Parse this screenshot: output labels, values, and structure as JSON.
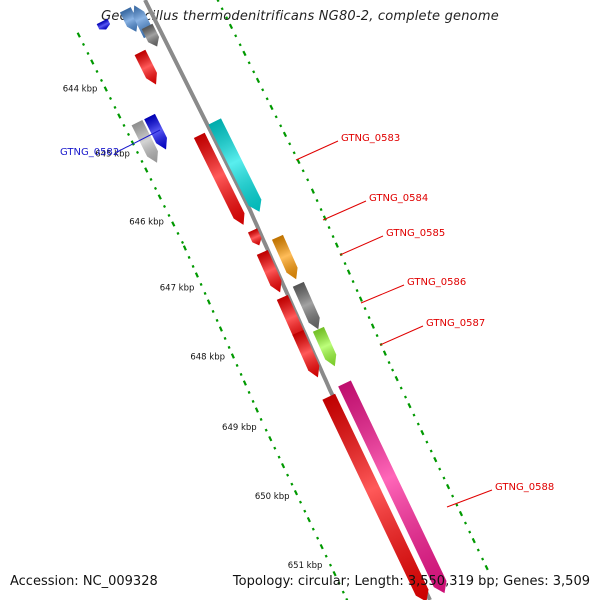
{
  "title": "Geobacillus thermodenitrificans NG80-2, complete genome",
  "footer": {
    "accession_text": "Accession: NC_009328",
    "summary_text": "Topology: circular; Length: 3,550,319 bp; Genes: 3,509"
  },
  "scale_labels": [
    "644 kbp",
    "645 kbp",
    "646 kbp",
    "647 kbp",
    "648 kbp",
    "649 kbp",
    "650 kbp",
    "651 kbp"
  ],
  "gene_labels": [
    {
      "id": "g0582",
      "text": "GTNG_0582",
      "color": "#1a1acc"
    },
    {
      "id": "g0583",
      "text": "GTNG_0583",
      "color": "#e00000"
    },
    {
      "id": "g0584",
      "text": "GTNG_0584",
      "color": "#e00000"
    },
    {
      "id": "g0585",
      "text": "GTNG_0585",
      "color": "#e00000"
    },
    {
      "id": "g0586",
      "text": "GTNG_0586",
      "color": "#e00000"
    },
    {
      "id": "g0587",
      "text": "GTNG_0587",
      "color": "#e00000"
    },
    {
      "id": "g0588",
      "text": "GTNG_0588",
      "color": "#e00000"
    }
  ],
  "colors": {
    "cds_red": "#ff0000",
    "blue": "#0000ee",
    "steel_blue": "#4a8ad6",
    "gray": "#707070",
    "light_gray": "#bdbdbd",
    "cyan": "#00e5e5",
    "orange": "#ff9900",
    "lime": "#99ff33",
    "pink": "#ff1493",
    "backbone": "#8a8a8a",
    "gc_green": "#009900"
  }
}
